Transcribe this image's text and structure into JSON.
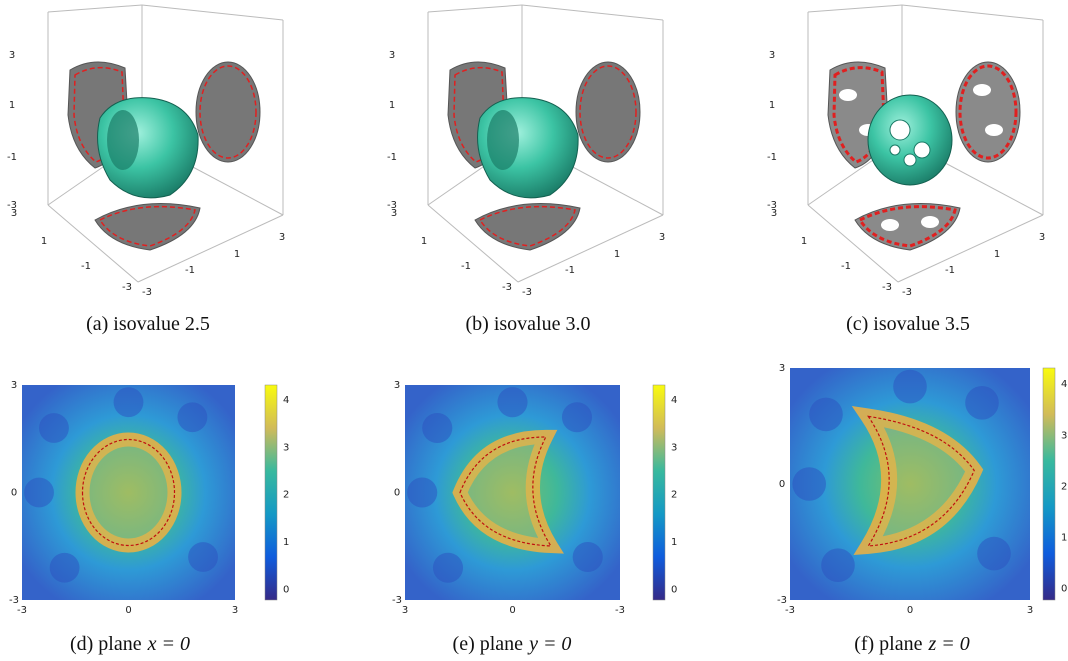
{
  "figures": [
    {
      "caption": "(a) isovalue 2.5",
      "z_ticks": [
        "3",
        "1",
        "-1",
        "-3"
      ],
      "y_ticks": [
        "3",
        "1",
        "-1",
        "-3"
      ],
      "x_ticks": [
        "-3",
        "-1",
        "1",
        "3"
      ]
    },
    {
      "caption": "(b) isovalue 3.0",
      "z_ticks": [
        "3",
        "1",
        "-1",
        "-3"
      ],
      "y_ticks": [
        "3",
        "1",
        "-1",
        "-3"
      ],
      "x_ticks": [
        "-3",
        "-1",
        "1",
        "3"
      ]
    },
    {
      "caption": "(c) isovalue 3.5",
      "z_ticks": [
        "3",
        "1",
        "-1",
        "-3"
      ],
      "y_ticks": [
        "3",
        "1",
        "-1",
        "-3"
      ],
      "x_ticks": [
        "-3",
        "-1",
        "1",
        "3"
      ]
    }
  ],
  "maps": [
    {
      "caption": "(d) plane",
      "caption_math": "x = 0",
      "x_ticks": [
        "-3",
        "0",
        "3"
      ],
      "y_ticks": [
        "3",
        "0",
        "-3"
      ],
      "colorbar_ticks": [
        "4",
        "3",
        "2",
        "1",
        "0"
      ]
    },
    {
      "caption": "(e) plane",
      "caption_math": "y = 0",
      "x_ticks": [
        "3",
        "0",
        "-3"
      ],
      "y_ticks": [
        "3",
        "0",
        "-3"
      ],
      "colorbar_ticks": [
        "4",
        "3",
        "2",
        "1",
        "0"
      ]
    },
    {
      "caption": "(f) plane",
      "caption_math": "z = 0",
      "x_ticks": [
        "-3",
        "0",
        "3"
      ],
      "y_ticks": [
        "3",
        "0",
        "-3"
      ],
      "colorbar_ticks": [
        "4",
        "3",
        "2",
        "1",
        "0"
      ]
    }
  ]
}
